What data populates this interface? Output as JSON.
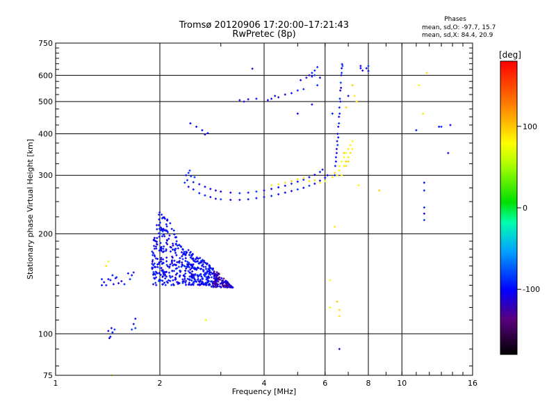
{
  "chart_data": {
    "type": "scatter",
    "title": "Tromsø 20120906 17:20:00–17:21:43",
    "subtitle": "RwPretec (8p)",
    "xlabel": "Frequency [MHz]",
    "ylabel": "Stationary phase Virtual Height [km]",
    "x_scale": "log2",
    "y_scale": "log",
    "xlim": [
      1,
      16
    ],
    "ylim": [
      75,
      750
    ],
    "x_ticks": [
      1,
      2,
      4,
      6,
      8,
      10,
      16
    ],
    "y_ticks": [
      75,
      100,
      200,
      300,
      400,
      500,
      600,
      750
    ],
    "grid": true,
    "phases": {
      "heading": "Phases",
      "line_o": "mean, sd,O:  -97.7, 15.7",
      "line_x": "mean, sd,X:  84.4, 20.9"
    },
    "colorbar": {
      "label": "[deg]",
      "min": -180,
      "max": 180,
      "ticks": [
        -100,
        0,
        100
      ]
    },
    "series": [
      {
        "name": "O",
        "phase_deg": -98,
        "traces": [
          {
            "points": [
              [
                1.44,
                145
              ],
              [
                1.46,
                150
              ],
              [
                1.49,
                147
              ],
              [
                1.47,
                141
              ],
              [
                1.42,
                146
              ],
              [
                1.4,
                140
              ],
              [
                1.52,
                142
              ],
              [
                1.5,
                148
              ],
              [
                1.58,
                141
              ],
              [
                1.62,
                152
              ],
              [
                1.66,
                150
              ],
              [
                1.64,
                146
              ],
              [
                1.68,
                153
              ],
              [
                1.55,
                144
              ]
            ]
          },
          {
            "points": [
              [
                1.36,
                140
              ],
              [
                1.38,
                143
              ],
              [
                1.36,
                146
              ]
            ]
          },
          {
            "points": [
              [
                1.42,
                102
              ],
              [
                1.44,
                98
              ],
              [
                1.46,
                101
              ],
              [
                1.45,
                104
              ],
              [
                1.43,
                97
              ],
              [
                1.48,
                103
              ]
            ]
          },
          {
            "points": [
              [
                1.66,
                103
              ],
              [
                1.68,
                107
              ],
              [
                1.7,
                111
              ],
              [
                1.7,
                104
              ]
            ]
          },
          {
            "points": [
              [
                2.42,
                277
              ],
              [
                2.5,
                272
              ],
              [
                2.6,
                265
              ],
              [
                2.7,
                261
              ],
              [
                2.8,
                258
              ],
              [
                2.9,
                255
              ],
              [
                3.0,
                254
              ],
              [
                3.2,
                253
              ],
              [
                3.4,
                253
              ],
              [
                3.6,
                254
              ],
              [
                3.8,
                256
              ],
              [
                4.0,
                258
              ],
              [
                4.2,
                260
              ],
              [
                4.4,
                263
              ],
              [
                4.6,
                266
              ],
              [
                4.8,
                269
              ],
              [
                5.0,
                272
              ],
              [
                5.2,
                275
              ],
              [
                5.4,
                279
              ],
              [
                5.6,
                283
              ],
              [
                5.8,
                289
              ],
              [
                6.0,
                295
              ],
              [
                6.1,
                300
              ]
            ]
          },
          {
            "points": [
              [
                2.4,
                290
              ],
              [
                2.5,
                286
              ],
              [
                2.6,
                282
              ],
              [
                2.7,
                277
              ],
              [
                2.8,
                273
              ],
              [
                2.9,
                270
              ],
              [
                3.0,
                268
              ],
              [
                3.2,
                266
              ],
              [
                3.4,
                265
              ],
              [
                3.6,
                266
              ],
              [
                3.8,
                268
              ],
              [
                4.0,
                270
              ],
              [
                4.2,
                273
              ],
              [
                4.4,
                276
              ],
              [
                4.6,
                279
              ],
              [
                4.8,
                283
              ],
              [
                5.0,
                287
              ],
              [
                5.2,
                291
              ],
              [
                5.4,
                296
              ],
              [
                5.6,
                301
              ],
              [
                5.8,
                307
              ],
              [
                5.9,
                312
              ]
            ]
          },
          {
            "points": [
              [
                2.38,
                300
              ],
              [
                2.42,
                305
              ],
              [
                2.46,
                298
              ],
              [
                2.52,
                296
              ],
              [
                2.44,
                310
              ],
              [
                2.36,
                285
              ]
            ]
          },
          {
            "points": [
              [
                6.4,
                300
              ],
              [
                6.42,
                320
              ],
              [
                6.45,
                340
              ],
              [
                6.48,
                360
              ],
              [
                6.5,
                380
              ],
              [
                6.52,
                400
              ],
              [
                6.55,
                420
              ],
              [
                6.58,
                450
              ],
              [
                6.6,
                480
              ],
              [
                6.62,
                510
              ],
              [
                6.64,
                540
              ],
              [
                6.66,
                570
              ],
              [
                6.68,
                600
              ],
              [
                6.7,
                630
              ],
              [
                6.72,
                648
              ]
            ]
          },
          {
            "points": [
              [
                6.45,
                330
              ],
              [
                6.48,
                350
              ],
              [
                6.52,
                370
              ],
              [
                6.55,
                390
              ],
              [
                6.58,
                430
              ],
              [
                6.61,
                460
              ],
              [
                6.64,
                500
              ],
              [
                6.67,
                550
              ],
              [
                6.7,
                610
              ],
              [
                6.74,
                640
              ]
            ]
          },
          {
            "points": [
              [
                5.1,
                580
              ],
              [
                5.3,
                590
              ],
              [
                5.4,
                600
              ],
              [
                5.5,
                610
              ],
              [
                5.6,
                620
              ],
              [
                5.7,
                635
              ],
              [
                5.6,
                600
              ],
              [
                5.5,
                595
              ],
              [
                5.7,
                560
              ],
              [
                5.8,
                590
              ]
            ]
          },
          {
            "points": [
              [
                4.2,
                510
              ],
              [
                4.4,
                515
              ],
              [
                4.6,
                525
              ],
              [
                4.8,
                530
              ],
              [
                5.0,
                540
              ],
              [
                5.2,
                545
              ],
              [
                4.3,
                520
              ],
              [
                4.1,
                505
              ]
            ]
          },
          {
            "points": [
              [
                3.4,
                505
              ],
              [
                3.6,
                508
              ],
              [
                3.8,
                510
              ],
              [
                3.5,
                500
              ]
            ]
          },
          {
            "points": [
              [
                2.45,
                430
              ],
              [
                2.55,
                420
              ],
              [
                2.65,
                410
              ],
              [
                2.75,
                402
              ],
              [
                2.7,
                398
              ]
            ]
          },
          {
            "points": [
              [
                5.0,
                460
              ],
              [
                5.5,
                490
              ],
              [
                6.3,
                460
              ],
              [
                7.0,
                520
              ],
              [
                7.6,
                640
              ],
              [
                7.9,
                630
              ],
              [
                8.0,
                618
              ]
            ]
          },
          {
            "points": [
              [
                7.6,
                630
              ],
              [
                7.7,
                620
              ],
              [
                8.0,
                640
              ]
            ]
          },
          {
            "points": [
              [
                11.6,
                285
              ],
              [
                11.6,
                270
              ],
              [
                11.6,
                230
              ],
              [
                11.6,
                220
              ],
              [
                11.6,
                240
              ]
            ]
          },
          {
            "points": [
              [
                11.0,
                410
              ],
              [
                12.8,
                420
              ],
              [
                13.8,
                425
              ],
              [
                13.6,
                350
              ],
              [
                13.0,
                420
              ]
            ]
          },
          {
            "points": [
              [
                6.6,
                90
              ]
            ]
          },
          {
            "points": [
              [
                3.7,
                628
              ]
            ]
          }
        ]
      },
      {
        "name": "X",
        "phase_deg": 84,
        "traces": [
          {
            "points": [
              [
                6.7,
                330
              ],
              [
                6.8,
                340
              ],
              [
                6.9,
                350
              ],
              [
                7.0,
                360
              ],
              [
                7.1,
                370
              ],
              [
                7.2,
                380
              ],
              [
                6.8,
                320
              ],
              [
                6.9,
                330
              ],
              [
                7.0,
                340
              ],
              [
                6.6,
                310
              ],
              [
                6.7,
                300
              ],
              [
                6.9,
                320
              ],
              [
                7.1,
                350
              ],
              [
                6.5,
                300
              ],
              [
                6.4,
                305
              ],
              [
                6.3,
                296
              ],
              [
                6.6,
                320
              ],
              [
                6.8,
                350
              ],
              [
                7.0,
                330
              ],
              [
                7.2,
                360
              ]
            ]
          },
          {
            "points": [
              [
                4.2,
                280
              ],
              [
                4.4,
                282
              ],
              [
                4.6,
                285
              ],
              [
                4.8,
                288
              ],
              [
                5.0,
                292
              ],
              [
                5.2,
                294
              ],
              [
                5.4,
                288
              ],
              [
                5.6,
                290
              ],
              [
                5.8,
                285
              ],
              [
                6.0,
                288
              ]
            ]
          },
          {
            "points": [
              [
                7.2,
                560
              ],
              [
                7.3,
                520
              ],
              [
                7.4,
                500
              ],
              [
                11.2,
                560
              ],
              [
                11.8,
                610
              ],
              [
                6.9,
                480
              ],
              [
                11.5,
                460
              ],
              [
                7.5,
                280
              ],
              [
                8.6,
                270
              ]
            ]
          },
          {
            "points": [
              [
                1.4,
                160
              ],
              [
                1.42,
                165
              ],
              [
                6.2,
                145
              ],
              [
                6.4,
                210
              ],
              [
                6.5,
                125
              ],
              [
                6.6,
                113
              ],
              [
                6.2,
                120
              ],
              [
                6.6,
                118
              ]
            ]
          },
          {
            "points": [
              [
                1.45,
                75
              ],
              [
                2.72,
                110
              ]
            ]
          }
        ]
      }
    ],
    "note": "Points of the dense low-height O-mode echo region (approx. 1.9–3.2 MHz, 140–240 km) are also plotted."
  }
}
